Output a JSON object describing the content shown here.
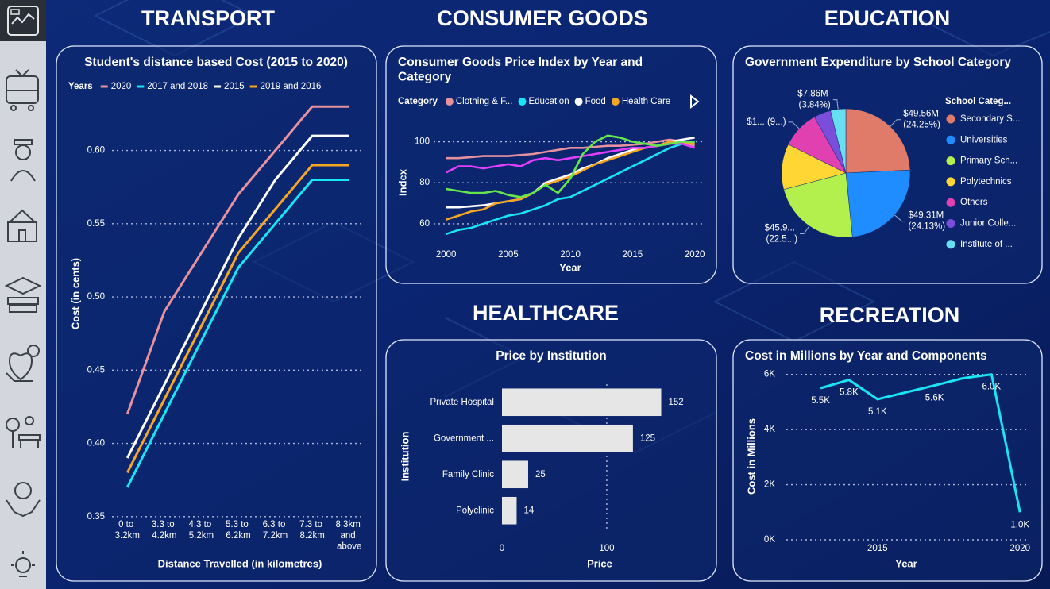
{
  "sections": [
    "TRANSPORT",
    "CONSUMER GOODS",
    "EDUCATION",
    "HEALTHCARE",
    "RECREATION"
  ],
  "chart_data": [
    {
      "type": "line",
      "title": "Student's distance based Cost (2015 to 2020)",
      "legend_title": "Years",
      "categories": [
        "0 to 3.2km",
        "3.3 to 4.2km",
        "4.3 to 5.2km",
        "5.3 to 6.2km",
        "6.3 to 7.2km",
        "7.3 to 8.2km",
        "8.3km and above"
      ],
      "x_label": "Distance Travelled (in kilometres)",
      "y_label": "Cost (in cents)",
      "ylim": [
        0.345,
        0.635
      ],
      "yticks": [
        {
          "value": 0.35,
          "label": "0.35"
        },
        {
          "value": 0.4,
          "label": "0.40"
        },
        {
          "value": 0.45,
          "label": "0.45"
        },
        {
          "value": 0.5,
          "label": "0.50"
        },
        {
          "value": 0.55,
          "label": "0.55"
        },
        {
          "value": 0.6,
          "label": "0.60"
        }
      ],
      "grid": true,
      "series": [
        {
          "name": "2020",
          "color": "#e8919e",
          "values": [
            0.42,
            0.49,
            0.53,
            0.57,
            0.6,
            0.63,
            0.63
          ]
        },
        {
          "name": "2017 and 2018",
          "color": "#19e6f5",
          "values": [
            0.37,
            0.42,
            0.47,
            0.52,
            0.55,
            0.58,
            0.58
          ]
        },
        {
          "name": "2015",
          "color": "#ffffff",
          "values": [
            0.39,
            0.44,
            0.49,
            0.54,
            0.58,
            0.61,
            0.61
          ]
        },
        {
          "name": "2019 and 2016",
          "color": "#f5a623",
          "values": [
            0.38,
            0.43,
            0.48,
            0.53,
            0.56,
            0.59,
            0.59
          ]
        }
      ]
    },
    {
      "type": "line",
      "title": "Consumer Goods Price Index by Year and Category",
      "legend_title": "Category",
      "x": [
        2000,
        2001,
        2002,
        2003,
        2004,
        2005,
        2006,
        2007,
        2008,
        2009,
        2010,
        2011,
        2012,
        2013,
        2014,
        2015,
        2016,
        2017,
        2018,
        2019,
        2020
      ],
      "x_label": "Year",
      "y_label": "Index",
      "xlim": [
        1999,
        2020.6
      ],
      "xticks": [
        2000,
        2005,
        2010,
        2015,
        2020
      ],
      "ylim": [
        53,
        106
      ],
      "yticks": [
        60,
        80,
        100
      ],
      "grid": true,
      "series": [
        {
          "name": "Clothing & F...",
          "color": "#e8919e",
          "values": [
            92,
            92,
            92.5,
            93,
            93,
            93,
            93.5,
            94,
            95,
            96,
            97,
            97,
            97.5,
            98,
            98,
            98.5,
            99,
            100,
            101,
            100,
            98
          ]
        },
        {
          "name": "Education",
          "color": "#19e6f5",
          "values": [
            55,
            57,
            58,
            60,
            62,
            64,
            65,
            67,
            69,
            72,
            73,
            76,
            79,
            82,
            85,
            88,
            91,
            94,
            97,
            99,
            100
          ]
        },
        {
          "name": "Food",
          "color": "#ffffff",
          "values": [
            68,
            68,
            68.5,
            69,
            70,
            71,
            72,
            75,
            80,
            82,
            84,
            87,
            89,
            92,
            94,
            96,
            97,
            98,
            100,
            101,
            102
          ]
        },
        {
          "name": "Health Care",
          "color": "#f5a623",
          "values": [
            62,
            64,
            66,
            67,
            70,
            71,
            72,
            75,
            79,
            81,
            83,
            86,
            89,
            91,
            93,
            95,
            97,
            98,
            100,
            99,
            99
          ]
        },
        {
          "color": "#e040fb",
          "values": [
            85,
            88,
            88,
            87,
            88,
            89,
            88,
            91,
            92,
            91,
            92,
            93,
            94,
            95,
            96,
            97,
            97,
            98,
            99,
            99,
            97
          ]
        },
        {
          "color": "#66e64d",
          "values": [
            77,
            76,
            75,
            75,
            76,
            74,
            73,
            75,
            79,
            75,
            82,
            94,
            100,
            103,
            102,
            100,
            99,
            98,
            99,
            100,
            100
          ]
        }
      ]
    },
    {
      "type": "pie",
      "title": "Government Expenditure by School Category",
      "legend_title": "School Categ...",
      "categories": [
        "Secondary S...",
        "Universities",
        "Primary Sch...",
        "Polytechnics",
        "Others",
        "Junior Colle...",
        "Institute of ..."
      ],
      "values": [
        49.56,
        49.31,
        45.98,
        23.46,
        19.41,
        8.8,
        7.86
      ],
      "value_labels": [
        "$49.56M (24.25%)",
        "$49.31M (24.13%)",
        "$45.9... (22.5...)",
        null,
        "$1... (9...)",
        null,
        "$7.86M (3.84%)"
      ],
      "colors": [
        "#e07b6a",
        "#1f8cff",
        "#b3f04d",
        "#ffd633",
        "#e040b0",
        "#7b4ddb",
        "#66e0f0"
      ]
    },
    {
      "type": "bar",
      "orientation": "horizontal",
      "title": "Price by Institution",
      "categories": [
        "Private Hospital",
        "Government ...",
        "Family Clinic",
        "Polyclinic"
      ],
      "values": [
        152,
        125,
        25,
        14
      ],
      "color": "#e6e6e6",
      "x_label": "Price",
      "y_label": "Institution",
      "xlim": [
        0,
        188
      ],
      "xticks": [
        0,
        100
      ],
      "grid": true
    },
    {
      "type": "line",
      "title": "Cost in Millions by Year and Components",
      "x": [
        2013,
        2014,
        2015,
        2017,
        2018,
        2019,
        2020
      ],
      "values": [
        5500,
        5800,
        5100,
        5600,
        5860,
        6000,
        1000
      ],
      "value_labels": [
        "5.5K",
        "5.8K",
        "5.1K",
        "5.6K",
        null,
        "6.0K",
        "1.0K"
      ],
      "color": "#19e6f5",
      "x_label": "Year",
      "y_label": "Cost in Millions",
      "xlim": [
        2011.8,
        2020.3
      ],
      "xticks": [
        2015,
        2020
      ],
      "ylim": [
        0,
        6250
      ],
      "yticks": [
        {
          "value": 0,
          "label": "0K"
        },
        {
          "value": 2000,
          "label": "2K"
        },
        {
          "value": 4000,
          "label": "4K"
        },
        {
          "value": 6000,
          "label": "6K"
        }
      ],
      "grid": true
    }
  ]
}
